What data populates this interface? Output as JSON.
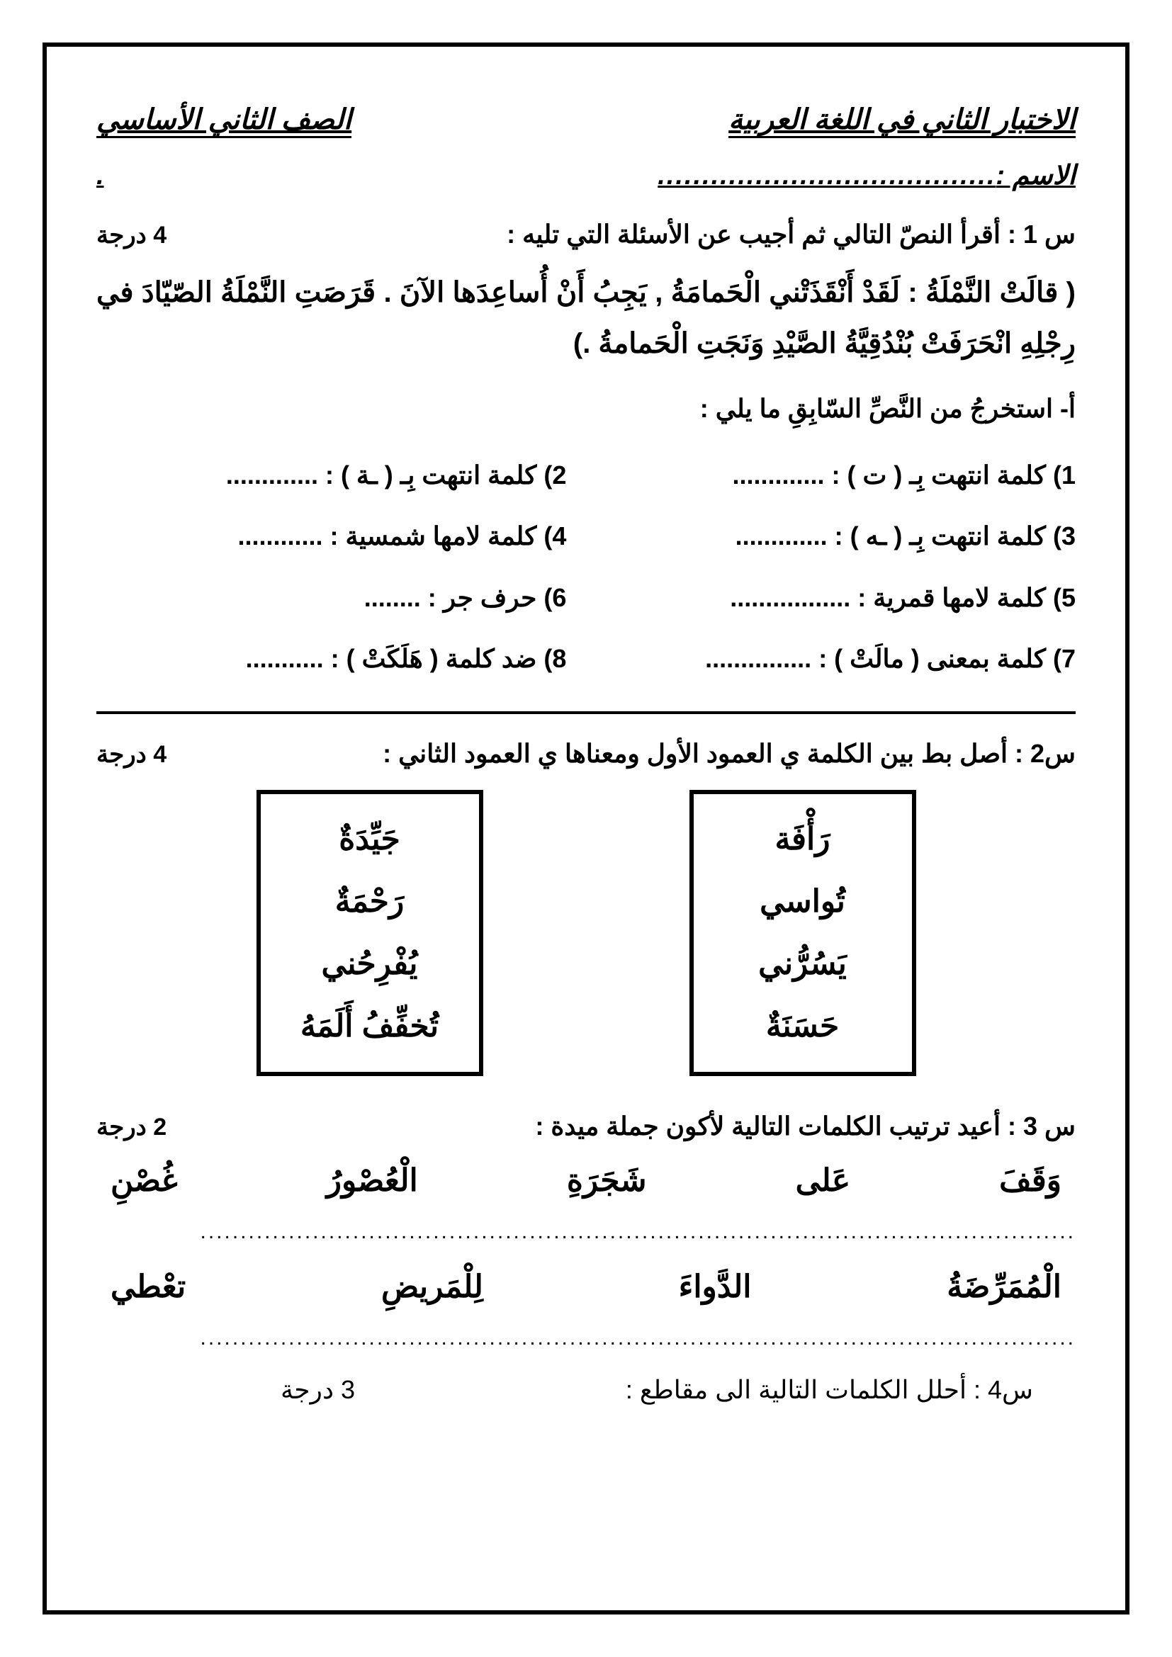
{
  "header": {
    "title_right": "الاختبار الثاني في اللغة العربية",
    "title_left": "الصف الثاني الأساسي",
    "name_label": "الاسم :",
    "name_dots": " ......................................",
    "name_end": "."
  },
  "q1": {
    "prompt": "س 1 : أقرأ النصّ التالي ثم أجيب عن الأسئلة التي تليه :",
    "score": "4 درجة",
    "passage": "( قالَتْ النَّمْلَةُ : لَقَدْ أَنْقَذَتْني الْحَمامَةُ , يَجِبُ أَنْ أُساعِدَها الآنَ . قَرَصَتِ النَّمْلَةُ الصّيّادَ في رِجْلِهِ انْحَرَفَتْ بُنْدُقِيَّةُ الصَّيْدِ وَنَجَتِ الْحَمامةُ .)",
    "sub": "أ- استخرجُ من النَّصِّ السّابِقِ ما يلي :",
    "items": [
      "1) كلمة انتهت بِـ ( ت ) :  .............",
      "2) كلمة انتهت بِـ ( ـة ) :  .............",
      "3) كلمة انتهت بِـ ( ـه ) :  .............",
      "4) كلمة لامها شمسية :  ............",
      "5) كلمة لامها قمرية :  .................",
      "6) حرف جر :  ........",
      "7) كلمة بمعنى ( مالَتْ ) :  ...............",
      "8) ضد كلمة ( هَلَكَتْ ) :  ..........."
    ]
  },
  "q2": {
    "prompt": "س2 : أصل بط بين الكلمة ي العمود الأول ومعناها ي العمود الثاني :",
    "score": "4 درجة",
    "col1": [
      "رَأْفَة",
      "تُواسي",
      "يَسُرُّني",
      "حَسَنَةٌ"
    ],
    "col2": [
      "جَيِّدَةٌ",
      "رَحْمَةٌ",
      "يُفْرِحُني",
      "تُخفِّفُ أَلَمَهُ"
    ]
  },
  "q3": {
    "prompt": "س 3 : أعيد ترتيب الكلمات التالية لأكون جملة ميدة :",
    "score": "2 درجة",
    "set1": [
      "وَقَفَ",
      "عَلى",
      "شَجَرَةِ",
      "الْعُصْورُ",
      "غُصْنِ"
    ],
    "set2": [
      "الْمُمَرِّضَةُ",
      "الدَّواءَ",
      "لِلْمَريضِ",
      "تعْطي"
    ],
    "dots": "............................................................................................................."
  },
  "q4": {
    "prompt": "س4 : أحلل الكلمات التالية الى مقاطع :",
    "score": "3 درجة"
  }
}
